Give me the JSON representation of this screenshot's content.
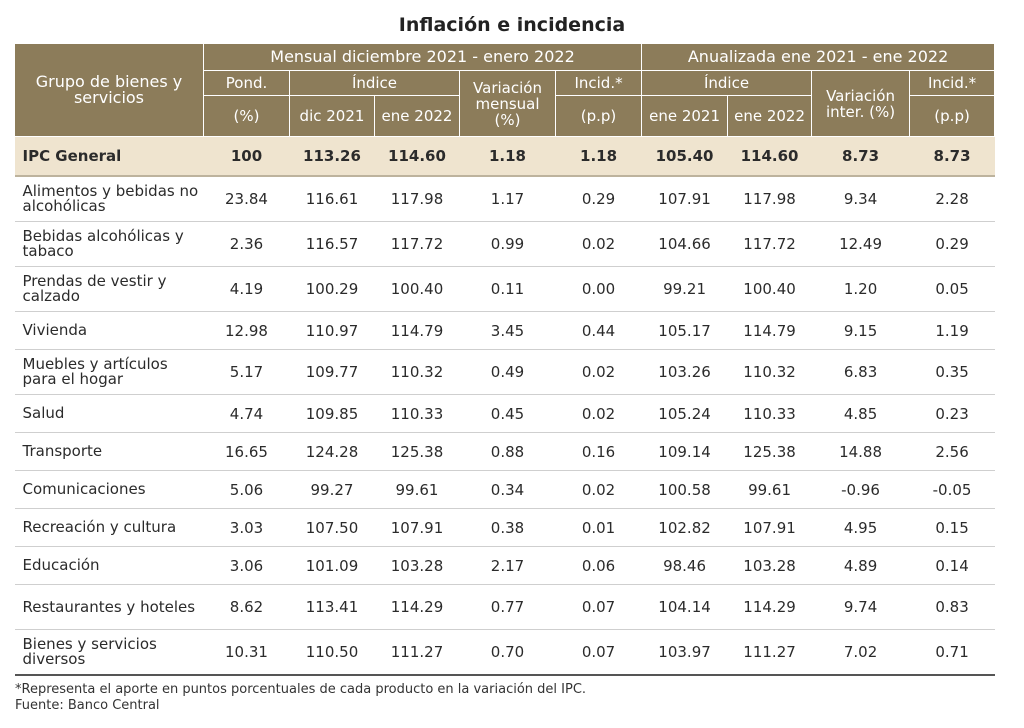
{
  "title": "Inflación e incidencia",
  "header": {
    "group_col": "Grupo de bienes y servicios",
    "monthly_group": "Mensual diciembre 2021 - enero 2022",
    "annual_group": "Anualizada ene 2021 - ene 2022",
    "pond": "Pond.",
    "pond_unit": "(%)",
    "indice": "Índice",
    "dic2021": "dic 2021",
    "ene2022": "ene 2022",
    "var_mensual": "Variación mensual (%)",
    "incid": "Incid.*",
    "incid_unit": "(p.p)",
    "ene2021": "ene 2021",
    "indice_annual": "Índice",
    "ene2022_b": "ene 2022",
    "var_inter": "Variación inter. (%)",
    "incid_annual": "Incid.*",
    "incid_annual_unit": "(p.p)"
  },
  "ipc": {
    "name": "IPC General",
    "pond": "100",
    "dic": "113.26",
    "ene": "114.60",
    "var": "1.18",
    "incid": "1.18",
    "a_ene21": "105.40",
    "a_ene22": "114.60",
    "a_var": "8.73",
    "a_incid": "8.73"
  },
  "rows": [
    {
      "name": "Alimentos y bebidas no alcohólicas",
      "pond": "23.84",
      "dic": "116.61",
      "ene": "117.98",
      "var": "1.17",
      "incid": "0.29",
      "a_ene21": "107.91",
      "a_ene22": "117.98",
      "a_var": "9.34",
      "a_incid": "2.28"
    },
    {
      "name": "Bebidas alcohólicas y tabaco",
      "pond": "2.36",
      "dic": "116.57",
      "ene": "117.72",
      "var": "0.99",
      "incid": "0.02",
      "a_ene21": "104.66",
      "a_ene22": "117.72",
      "a_var": "12.49",
      "a_incid": "0.29"
    },
    {
      "name": "Prendas de vestir y calzado",
      "pond": "4.19",
      "dic": "100.29",
      "ene": "100.40",
      "var": "0.11",
      "incid": "0.00",
      "a_ene21": "99.21",
      "a_ene22": "100.40",
      "a_var": "1.20",
      "a_incid": "0.05"
    },
    {
      "name": "Vivienda",
      "pond": "12.98",
      "dic": "110.97",
      "ene": "114.79",
      "var": "3.45",
      "incid": "0.44",
      "a_ene21": "105.17",
      "a_ene22": "114.79",
      "a_var": "9.15",
      "a_incid": "1.19"
    },
    {
      "name": "Muebles y artículos para el hogar",
      "pond": "5.17",
      "dic": "109.77",
      "ene": "110.32",
      "var": "0.49",
      "incid": "0.02",
      "a_ene21": "103.26",
      "a_ene22": "110.32",
      "a_var": "6.83",
      "a_incid": "0.35"
    },
    {
      "name": "Salud",
      "pond": "4.74",
      "dic": "109.85",
      "ene": "110.33",
      "var": "0.45",
      "incid": "0.02",
      "a_ene21": "105.24",
      "a_ene22": "110.33",
      "a_var": "4.85",
      "a_incid": "0.23"
    },
    {
      "name": "Transporte",
      "pond": "16.65",
      "dic": "124.28",
      "ene": "125.38",
      "var": "0.88",
      "incid": "0.16",
      "a_ene21": "109.14",
      "a_ene22": "125.38",
      "a_var": "14.88",
      "a_incid": "2.56"
    },
    {
      "name": "Comunicaciones",
      "pond": "5.06",
      "dic": "99.27",
      "ene": "99.61",
      "var": "0.34",
      "incid": "0.02",
      "a_ene21": "100.58",
      "a_ene22": "99.61",
      "a_var": "-0.96",
      "a_incid": "-0.05"
    },
    {
      "name": "Recreación y cultura",
      "pond": "3.03",
      "dic": "107.50",
      "ene": "107.91",
      "var": "0.38",
      "incid": "0.01",
      "a_ene21": "102.82",
      "a_ene22": "107.91",
      "a_var": "4.95",
      "a_incid": "0.15"
    },
    {
      "name": "Educación",
      "pond": "3.06",
      "dic": "101.09",
      "ene": "103.28",
      "var": "2.17",
      "incid": "0.06",
      "a_ene21": "98.46",
      "a_ene22": "103.28",
      "a_var": "4.89",
      "a_incid": "0.14"
    },
    {
      "name": "Restaurantes y hoteles",
      "pond": "8.62",
      "dic": "113.41",
      "ene": "114.29",
      "var": "0.77",
      "incid": "0.07",
      "a_ene21": "104.14",
      "a_ene22": "114.29",
      "a_var": "9.74",
      "a_incid": "0.83"
    },
    {
      "name": "Bienes y servicios diversos",
      "pond": "10.31",
      "dic": "110.50",
      "ene": "111.27",
      "var": "0.70",
      "incid": "0.07",
      "a_ene21": "103.97",
      "a_ene22": "111.27",
      "a_var": "7.02",
      "a_incid": "0.71"
    }
  ],
  "footnote": "*Representa el aporte en puntos porcentuales de cada producto en la variación del IPC.",
  "source": "Fuente: Banco Central"
}
